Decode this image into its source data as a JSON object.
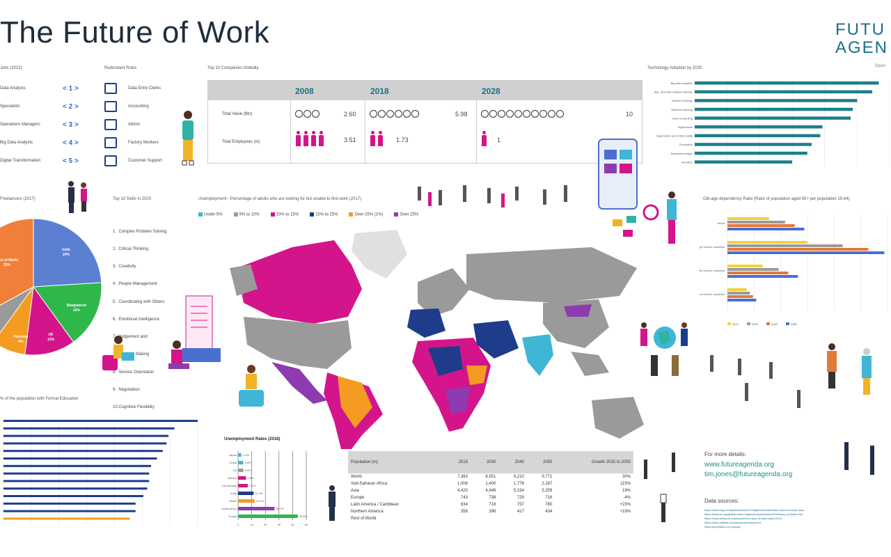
{
  "title": "The Future of Work",
  "logo": {
    "line1": "FUTU",
    "line2": "AGEN",
    "tag": "Spain"
  },
  "jobs_section": {
    "header": "Jobs (2022)",
    "rows": [
      {
        "label": "Data Analysts",
        "rank": "< 1 >"
      },
      {
        "label": "Specialists",
        "rank": "< 2 >"
      },
      {
        "label": "Operations Managers",
        "rank": "< 3 >"
      },
      {
        "label": "Big Data Analysts",
        "rank": "< 4 >"
      },
      {
        "label": "Digital Transformation",
        "rank": "< 5 >"
      }
    ]
  },
  "redundant": {
    "header": "Redundant Roles",
    "items": [
      "Data Entry Clerks",
      "Accounting",
      "Admin",
      "Factory Workers",
      "Customer Support"
    ]
  },
  "top10": {
    "header": "Top 10 Companies Globally",
    "years": [
      "2008",
      "2018",
      "2028"
    ],
    "row1_label": "Total Value ($tn)",
    "row2_label": "Total Employees (m)",
    "values": [
      "2.60",
      "5.98",
      "10"
    ],
    "employees": [
      "3.51",
      "1.73",
      "1"
    ]
  },
  "tech": {
    "header": "Technology Adoption by 2025",
    "labels": [
      "Big data analytics",
      "App- and web-enabled markets",
      "Internet of things",
      "Machine learning",
      "Cloud computing",
      "Digital trade",
      "Augmented and virtual reality",
      "Encryption",
      "Distributed ledger",
      "Robotics"
    ],
    "values": [
      85,
      82,
      75,
      73,
      72,
      59,
      58,
      54,
      52,
      45
    ]
  },
  "pie": {
    "header": "Freelancers (2017)",
    "labels": [
      {
        "name": "India",
        "pct": "24%"
      },
      {
        "name": "Bangladesh",
        "pct": "16%"
      },
      {
        "name": "UK",
        "pct": "12%"
      },
      {
        "name": "Pakistan",
        "pct": "8%"
      },
      {
        "name": "Rest of World",
        "pct": "33%"
      }
    ]
  },
  "skills": {
    "header": "Top 10 Skills in 2020",
    "items": [
      "1.  Complex Problem Solving",
      "2.  Critical Thinking",
      "3.  Creativity",
      "4.  People Management",
      "5.  Coordinating with Others",
      "6.  Emotional Intelligence",
      "7.  Judgement and",
      "     Decision Making",
      "8.  Service Orientation",
      "9.  Negotiation",
      "10.Cognitive Flexibility"
    ]
  },
  "map": {
    "header": "Unemployment - Percentage of adults who are looking for but unable to find work (2017)",
    "legend": [
      "Under 5%",
      "5% to 10%",
      "10% to 15%",
      "15% to 25%",
      "Over 25% (1%)",
      "Over 25%"
    ],
    "legend_colors": [
      "#3fb6d6",
      "#9a9a9a",
      "#d4148a",
      "#1e3c8a",
      "#f39c21",
      "#8e3ab0"
    ]
  },
  "old_age": {
    "header": "Old-age dependency Ratio (Ratio of population aged 65+ per population 15-64)",
    "groups": [
      "World",
      "High Income\ncountries",
      "Middle Income\ncountries",
      "Low Income\ncountries"
    ],
    "legend": [
      "2015",
      "2030",
      "2040",
      "2050"
    ]
  },
  "formal_edu": {
    "header": "% of the population with Formal Education"
  },
  "unemp_rate": {
    "header": "Unemployment Rates (2018)",
    "countries": [
      "Japan",
      "China",
      "US",
      "Mexico",
      "UK Average",
      "India",
      "Brazil",
      "South Africa",
      "Turkey"
    ],
    "values": [
      2.4,
      3.8,
      3.9,
      5.8,
      7.1,
      11.4,
      12.1,
      26.7,
      43.8
    ]
  },
  "population": {
    "columns": [
      "Population (m)",
      "2015",
      "2030",
      "2040",
      "2050",
      "Growth 2015 to 2050"
    ],
    "rows": [
      [
        "World",
        "7,383",
        "8,551",
        "9,210",
        "9,771",
        "30%"
      ],
      [
        "Sub-Saharan Africa",
        "1,006",
        "1,400",
        "1,776",
        "2,167",
        "115%"
      ],
      [
        "Asia",
        "4,420",
        "4,946",
        "5,154",
        "5,259",
        "19%"
      ],
      [
        "Europe",
        "743",
        "738",
        "729",
        "716",
        "-4%"
      ],
      [
        "Latin America / Caribbean",
        "634",
        "718",
        "757",
        "780",
        "+23%"
      ],
      [
        "Northern America",
        "358",
        "396",
        "417",
        "434",
        "+19%"
      ],
      [
        "Rest of World",
        "",
        "",
        "",
        "",
        ""
      ]
    ]
  },
  "links": {
    "header": "For more details:",
    "url1": "www.futureagenda.org",
    "url2": "tim.jones@futureagenda.org",
    "sources_header": "Data sources:",
    "sources": [
      "https://www.bcg.com/publications/2017/digital-transformation-future-of-work.aspx",
      "https://www.ilo.org/global/research/global-reports/weso/2018/lang--en/index.htm",
      "https://www.weforum.org/reports/the-future-of-jobs-report-2018",
      "https://www.statista.com/study/unemployment",
      "https://population.un.org/wpp/"
    ]
  },
  "chart_data": [
    {
      "type": "bar",
      "title": "Technology Adoption by 2025",
      "categories": [
        "Big data analytics",
        "App- and web-enabled markets",
        "Internet of things",
        "Machine learning",
        "Cloud computing",
        "Digital trade",
        "Augmented and virtual reality",
        "Encryption",
        "Distributed ledger",
        "Robotics"
      ],
      "values": [
        85,
        82,
        75,
        73,
        72,
        59,
        58,
        54,
        52,
        45
      ],
      "xlim": [
        0,
        90
      ]
    },
    {
      "type": "pie",
      "title": "Freelancers (2017)",
      "categories": [
        "India",
        "Bangladesh",
        "UK",
        "Pakistan",
        "Other",
        "Rest of World"
      ],
      "values": [
        24,
        16,
        12,
        8,
        7,
        33
      ]
    },
    {
      "type": "bar",
      "title": "Unemployment Rates (2018)",
      "categories": [
        "Japan",
        "China",
        "US",
        "Mexico",
        "UK Average",
        "India",
        "Brazil",
        "South Africa",
        "Turkey"
      ],
      "values": [
        2.4,
        3.8,
        3.9,
        5.8,
        7.1,
        11.4,
        12.1,
        26.7,
        43.8
      ],
      "xlim": [
        0,
        50
      ]
    },
    {
      "type": "bar",
      "title": "% of the population with Formal Education",
      "values": [
        100,
        88,
        85,
        84,
        82,
        79,
        76,
        75,
        75,
        74,
        72,
        68,
        68,
        65
      ],
      "xlim": [
        0,
        100
      ]
    },
    {
      "type": "bar",
      "title": "Old-age dependency Ratio",
      "categories": [
        "World",
        "High Income countries",
        "Middle Income countries",
        "Low Income countries"
      ],
      "series": [
        {
          "name": "2015",
          "values": [
            13,
            25,
            11,
            6
          ]
        },
        {
          "name": "2030",
          "values": [
            18,
            36,
            16,
            7
          ]
        },
        {
          "name": "2040",
          "values": [
            21,
            44,
            19,
            8
          ]
        },
        {
          "name": "2050",
          "values": [
            24,
            49,
            22,
            9
          ]
        }
      ],
      "xlim": [
        0,
        50
      ]
    }
  ]
}
